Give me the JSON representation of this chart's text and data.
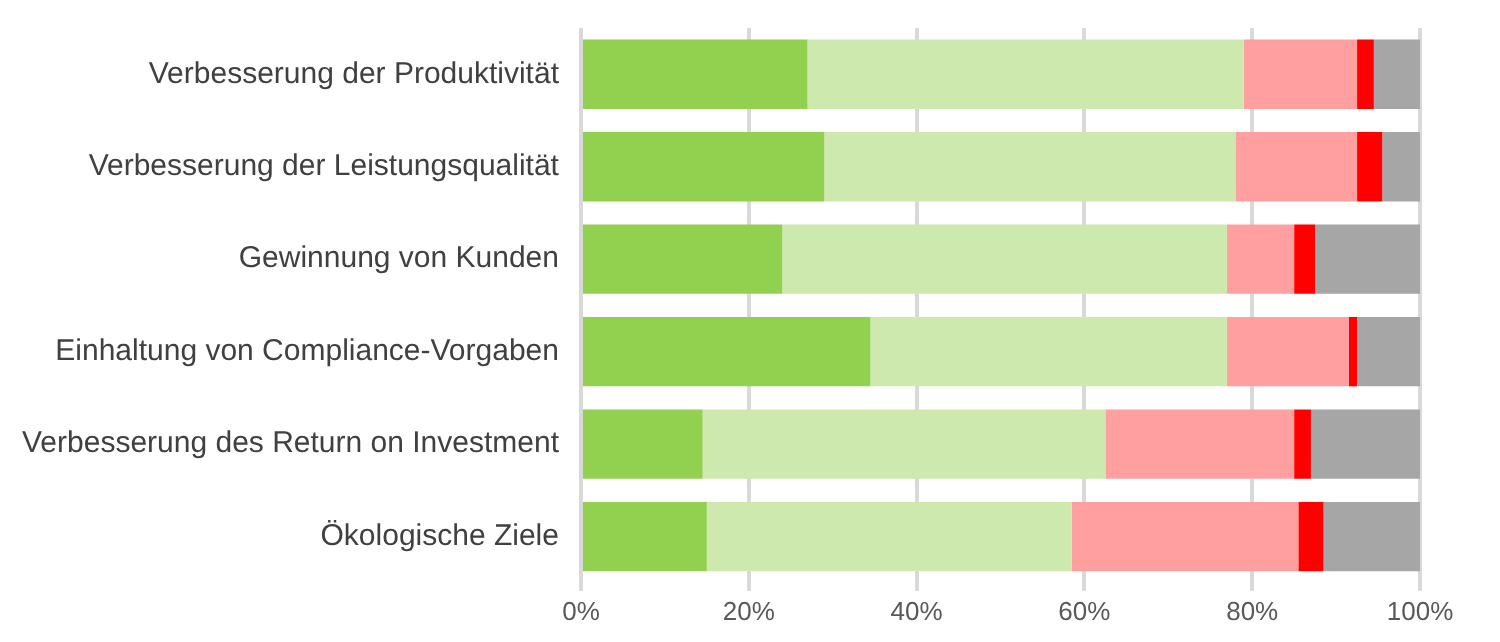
{
  "chart_data": {
    "type": "bar",
    "orientation": "horizontal",
    "stacked": true,
    "categories": [
      "Verbesserung der Produktivität",
      "Verbesserung der Leistungsqualität",
      "Gewinnung von Kunden",
      "Einhaltung von Compliance-Vorgaben",
      "Verbesserung des Return on Investment",
      "Ökologische Ziele"
    ],
    "series": [
      {
        "color": "#92d050",
        "values": [
          27,
          29,
          24,
          34.5,
          14.5,
          15
        ]
      },
      {
        "color": "#cde9ae",
        "values": [
          52,
          49,
          53,
          42.5,
          48,
          43.5
        ]
      },
      {
        "color": "#ff9f9f",
        "values": [
          13.5,
          14.5,
          8,
          14.5,
          22.5,
          27
        ]
      },
      {
        "color": "#ff0000",
        "values": [
          2,
          3,
          2.5,
          1,
          2,
          3
        ]
      },
      {
        "color": "#a6a6a6",
        "values": [
          5.5,
          4.5,
          12.5,
          7.5,
          13,
          11.5
        ]
      }
    ],
    "xlim": [
      0,
      100
    ],
    "xticks": [
      {
        "value": 0,
        "label": "0%"
      },
      {
        "value": 20,
        "label": "20%"
      },
      {
        "value": 40,
        "label": "40%"
      },
      {
        "value": 60,
        "label": "60%"
      },
      {
        "value": 80,
        "label": "80%"
      },
      {
        "value": 100,
        "label": "100%"
      }
    ],
    "grid": "x",
    "legend": false
  }
}
